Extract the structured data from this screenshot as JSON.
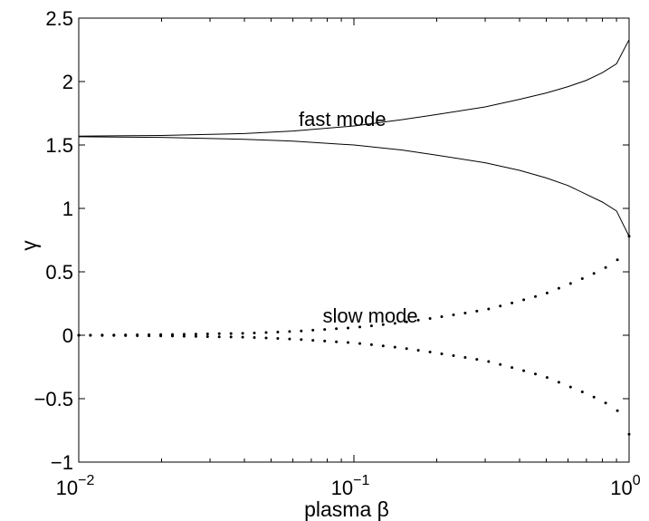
{
  "chart_data": {
    "type": "line",
    "title": "",
    "xlabel": "plasma β",
    "ylabel": "γ",
    "xscale": "log",
    "xlim": [
      0.01,
      1
    ],
    "ylim": [
      -1,
      2.5
    ],
    "xticks": [
      {
        "value": 0.01,
        "base": "10",
        "exp": "−2"
      },
      {
        "value": 0.1,
        "base": "10",
        "exp": "−1"
      },
      {
        "value": 1,
        "base": "10",
        "exp": "0"
      }
    ],
    "yticks": [
      {
        "value": -1,
        "label": "−1"
      },
      {
        "value": -0.5,
        "label": "−0.5"
      },
      {
        "value": 0,
        "label": "0"
      },
      {
        "value": 0.5,
        "label": "0.5"
      },
      {
        "value": 1,
        "label": "1"
      },
      {
        "value": 1.5,
        "label": "1.5"
      },
      {
        "value": 2,
        "label": "2"
      },
      {
        "value": 2.5,
        "label": "2.5"
      }
    ],
    "grid": false,
    "annotations": [
      {
        "text": "fast mode",
        "x": 0.063,
        "y": 1.65
      },
      {
        "text": "slow mode",
        "x": 0.077,
        "y": 0.1
      }
    ],
    "series": [
      {
        "style": "solid",
        "x": [
          0.01,
          0.02,
          0.04,
          0.06,
          0.1,
          0.15,
          0.2,
          0.3,
          0.4,
          0.5,
          0.6,
          0.7,
          0.8,
          0.9,
          1.0
        ],
        "y": [
          1.57,
          1.575,
          1.59,
          1.61,
          1.65,
          1.7,
          1.74,
          1.8,
          1.86,
          1.91,
          1.96,
          2.01,
          2.07,
          2.14,
          2.33
        ]
      },
      {
        "style": "solid",
        "x": [
          0.01,
          0.02,
          0.04,
          0.06,
          0.1,
          0.15,
          0.2,
          0.3,
          0.4,
          0.5,
          0.6,
          0.7,
          0.8,
          0.9,
          1.0
        ],
        "y": [
          1.565,
          1.56,
          1.545,
          1.53,
          1.5,
          1.46,
          1.42,
          1.36,
          1.3,
          1.24,
          1.18,
          1.11,
          1.05,
          0.98,
          0.78
        ]
      },
      {
        "style": "dotted",
        "x": [
          0.01,
          0.02,
          0.04,
          0.06,
          0.1,
          0.15,
          0.2,
          0.3,
          0.4,
          0.5,
          0.6,
          0.7,
          0.8,
          0.9,
          1.0
        ],
        "y": [
          0.0,
          0.005,
          0.015,
          0.03,
          0.06,
          0.1,
          0.14,
          0.2,
          0.27,
          0.33,
          0.4,
          0.46,
          0.52,
          0.58,
          0.78
        ]
      },
      {
        "style": "dotted",
        "x": [
          0.01,
          0.02,
          0.04,
          0.06,
          0.1,
          0.15,
          0.2,
          0.3,
          0.4,
          0.5,
          0.6,
          0.7,
          0.8,
          0.9,
          1.0
        ],
        "y": [
          0.0,
          -0.005,
          -0.015,
          -0.03,
          -0.06,
          -0.1,
          -0.14,
          -0.2,
          -0.27,
          -0.33,
          -0.4,
          -0.46,
          -0.52,
          -0.58,
          -0.78
        ]
      }
    ]
  }
}
